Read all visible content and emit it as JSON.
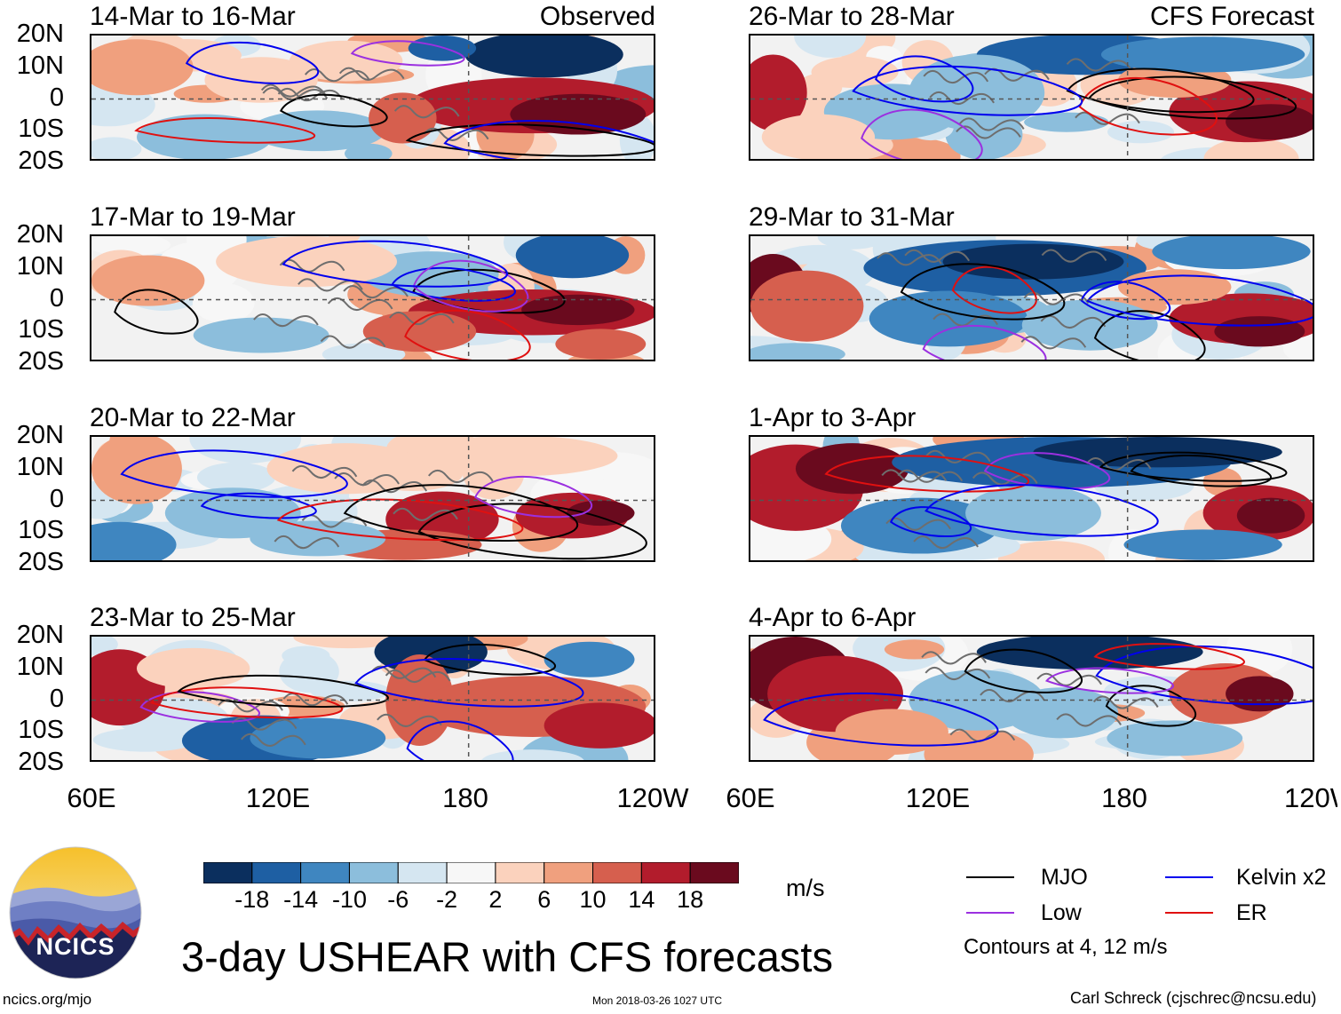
{
  "chart_data": {
    "type": "heatmap",
    "title": "3-day USHEAR with CFS forecasts",
    "variable": "USHEAR",
    "units": "m/s",
    "left_column_label": "Observed",
    "right_column_label": "CFS Forecast",
    "y_ticks": [
      "20N",
      "10N",
      "0",
      "10S",
      "20S"
    ],
    "x_ticks": [
      "60E",
      "120E",
      "180",
      "120W"
    ],
    "ylim": [
      -20,
      20
    ],
    "xlim": [
      60,
      240
    ],
    "colorbar": {
      "labels": [
        "-18",
        "-14",
        "-10",
        "-6",
        "-2",
        "2",
        "6",
        "10",
        "14",
        "18"
      ],
      "colors": [
        "#0b2f5e",
        "#1e5fa3",
        "#3f86c0",
        "#8cbedc",
        "#d5e6f1",
        "#f7f7f7",
        "#fbd2bd",
        "#f0a07e",
        "#d65f4e",
        "#b21c2c",
        "#6a0a1e"
      ]
    },
    "panels": [
      {
        "id": "obs-1",
        "title": "14-Mar to 16-Mar",
        "source": "Observed"
      },
      {
        "id": "obs-2",
        "title": "17-Mar to 19-Mar",
        "source": "Observed"
      },
      {
        "id": "obs-3",
        "title": "20-Mar to 22-Mar",
        "source": "Observed"
      },
      {
        "id": "obs-4",
        "title": "23-Mar to 25-Mar",
        "source": "Observed"
      },
      {
        "id": "fc-1",
        "title": "26-Mar to 28-Mar",
        "source": "CFS Forecast"
      },
      {
        "id": "fc-2",
        "title": "29-Mar to 31-Mar",
        "source": "CFS Forecast"
      },
      {
        "id": "fc-3",
        "title": "1-Apr to 3-Apr",
        "source": "CFS Forecast"
      },
      {
        "id": "fc-4",
        "title": "4-Apr to 6-Apr",
        "source": "CFS Forecast"
      }
    ],
    "contour_legend": [
      {
        "name": "MJO",
        "color": "#000000"
      },
      {
        "name": "Kelvin x2",
        "color": "#0000ee"
      },
      {
        "name": "Low",
        "color": "#9b30e0"
      },
      {
        "name": "ER",
        "color": "#e01010"
      }
    ],
    "contour_note": "Contours at 4, 12 m/s"
  },
  "branding": {
    "logo_text": "NCICS",
    "site": "ncics.org/mjo",
    "timestamp": "Mon 2018-03-26 1027 UTC",
    "author": "Carl Schreck (cjschrec@ncsu.edu)"
  }
}
